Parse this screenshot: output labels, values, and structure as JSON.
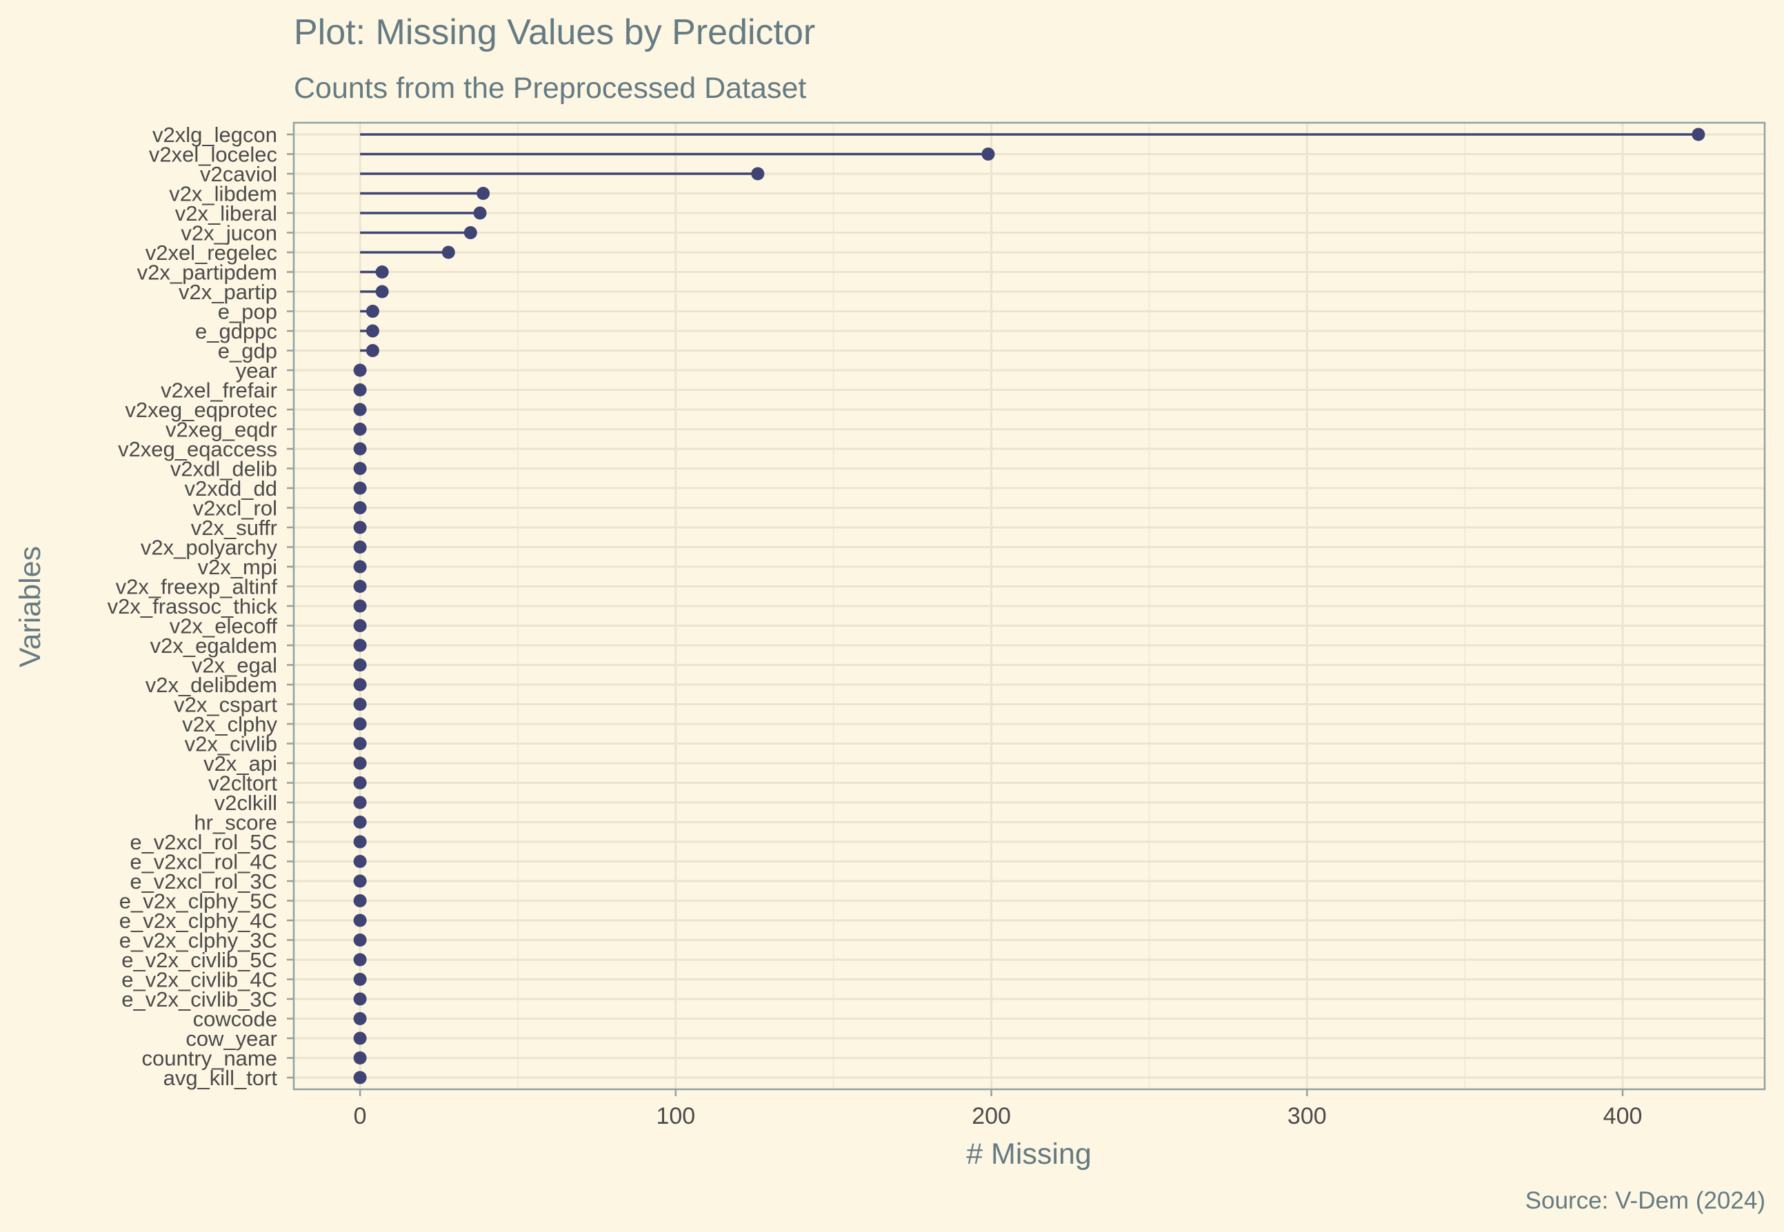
{
  "chart_data": {
    "type": "lollipop",
    "title": "Plot: Missing Values by Predictor",
    "subtitle": "Counts from the Preprocessed Dataset",
    "xlabel": "# Missing",
    "ylabel": "Variables",
    "caption": "Source: V-Dem (2024)",
    "xlim": [
      -21,
      445
    ],
    "xticks": [
      0,
      100,
      200,
      300,
      400
    ],
    "grid": true,
    "colors": {
      "background": "#fdf6e3",
      "mark": "#3f4474",
      "text": "#657b83"
    },
    "categories": [
      "v2xlg_legcon",
      "v2xel_locelec",
      "v2caviol",
      "v2x_libdem",
      "v2x_liberal",
      "v2x_jucon",
      "v2xel_regelec",
      "v2x_partipdem",
      "v2x_partip",
      "e_pop",
      "e_gdppc",
      "e_gdp",
      "year",
      "v2xel_frefair",
      "v2xeg_eqprotec",
      "v2xeg_eqdr",
      "v2xeg_eqaccess",
      "v2xdl_delib",
      "v2xdd_dd",
      "v2xcl_rol",
      "v2x_suffr",
      "v2x_polyarchy",
      "v2x_mpi",
      "v2x_freexp_altinf",
      "v2x_frassoc_thick",
      "v2x_elecoff",
      "v2x_egaldem",
      "v2x_egal",
      "v2x_delibdem",
      "v2x_cspart",
      "v2x_clphy",
      "v2x_civlib",
      "v2x_api",
      "v2cltort",
      "v2clkill",
      "hr_score",
      "e_v2xcl_rol_5C",
      "e_v2xcl_rol_4C",
      "e_v2xcl_rol_3C",
      "e_v2x_clphy_5C",
      "e_v2x_clphy_4C",
      "e_v2x_clphy_3C",
      "e_v2x_civlib_5C",
      "e_v2x_civlib_4C",
      "e_v2x_civlib_3C",
      "cowcode",
      "cow_year",
      "country_name",
      "avg_kill_tort"
    ],
    "values": [
      424,
      199,
      126,
      39,
      38,
      35,
      28,
      7,
      7,
      4,
      4,
      4,
      0,
      0,
      0,
      0,
      0,
      0,
      0,
      0,
      0,
      0,
      0,
      0,
      0,
      0,
      0,
      0,
      0,
      0,
      0,
      0,
      0,
      0,
      0,
      0,
      0,
      0,
      0,
      0,
      0,
      0,
      0,
      0,
      0,
      0,
      0,
      0,
      0
    ]
  }
}
